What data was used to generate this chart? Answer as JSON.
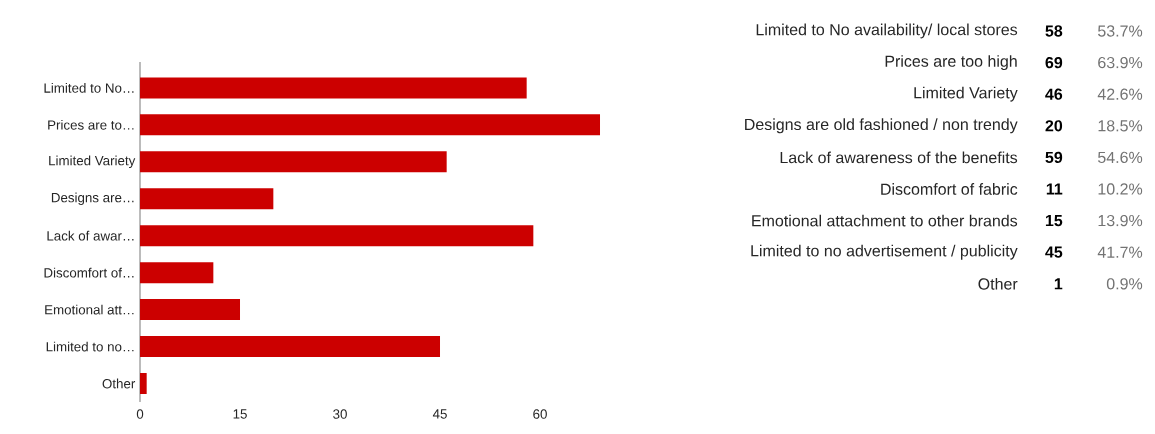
{
  "chart_data": [
    {
      "type": "bar",
      "orientation": "horizontal",
      "categories": [
        "Limited to No…",
        "Prices are to…",
        "Limited Variety",
        "Designs are…",
        "Lack of awar…",
        "Discomfort of…",
        "Emotional att…",
        "Limited to no…",
        "Other"
      ],
      "values": [
        58,
        69,
        46,
        20,
        59,
        11,
        15,
        45,
        1
      ],
      "color": "#cc0000",
      "xlim": [
        0,
        69
      ],
      "xticks": [
        0,
        15,
        30,
        45,
        60
      ],
      "grid": false
    },
    {
      "type": "other",
      "annotations": [
        "Limited to No availability/ local stores",
        "Prices are too high",
        "Limited Variety",
        "Designs are old fashioned / non trendy",
        "Lack of awareness of the benefits",
        "Discomfort of fabric",
        "Emotional attachment to other brands",
        "Limited to no advertisement / publicity",
        "Other",
        "58",
        "69",
        "46",
        "20",
        "59",
        "11",
        "15",
        "45",
        "1",
        "53.7%",
        "63.9%",
        "42.6%",
        "18.5%",
        "54.6%",
        "10.2%",
        "13.9%",
        "41.7%",
        "0.9%"
      ]
    }
  ]
}
